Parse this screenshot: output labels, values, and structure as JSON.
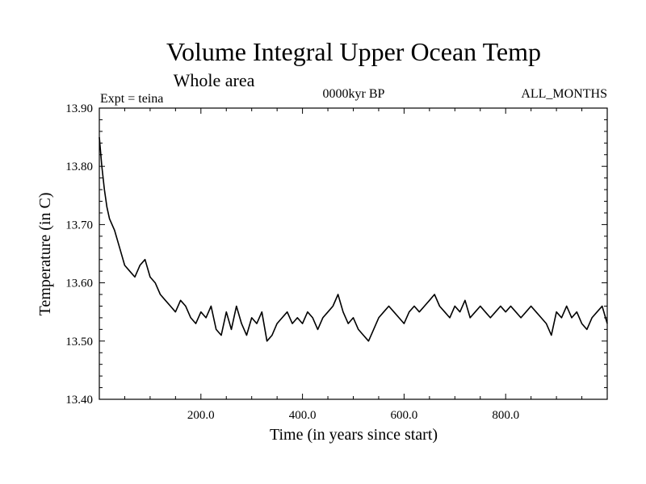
{
  "chart_data": {
    "type": "line",
    "title": "Volume Integral Upper Ocean Temp",
    "subtitle": "Whole area",
    "annotations": {
      "experiment": "Expt = teina",
      "period": "0000kyr BP",
      "months": "ALL_MONTHS"
    },
    "xlabel": "Time (in years since start)",
    "ylabel": "Temperature (in C)",
    "xlim": [
      0,
      1000
    ],
    "ylim": [
      13.4,
      13.9
    ],
    "xticks": [
      200,
      400,
      600,
      800
    ],
    "xtick_labels": [
      "200.0",
      "400.0",
      "600.0",
      "800.0"
    ],
    "yticks": [
      13.4,
      13.5,
      13.6,
      13.7,
      13.8,
      13.9
    ],
    "ytick_labels": [
      "13.40",
      "13.50",
      "13.60",
      "13.70",
      "13.80",
      "13.90"
    ],
    "grid": false,
    "series": [
      {
        "name": "teina",
        "x": [
          0,
          5,
          10,
          15,
          20,
          30,
          40,
          50,
          60,
          70,
          80,
          90,
          100,
          110,
          120,
          130,
          140,
          150,
          160,
          170,
          180,
          190,
          200,
          210,
          220,
          230,
          240,
          250,
          260,
          270,
          280,
          290,
          300,
          310,
          320,
          330,
          340,
          350,
          360,
          370,
          380,
          390,
          400,
          410,
          420,
          430,
          440,
          450,
          460,
          470,
          480,
          490,
          500,
          510,
          520,
          530,
          540,
          550,
          560,
          570,
          580,
          590,
          600,
          610,
          620,
          630,
          640,
          650,
          660,
          670,
          680,
          690,
          700,
          710,
          720,
          730,
          740,
          750,
          760,
          770,
          780,
          790,
          800,
          810,
          820,
          830,
          840,
          850,
          860,
          870,
          880,
          890,
          900,
          910,
          920,
          930,
          940,
          950,
          960,
          970,
          980,
          990,
          1000
        ],
        "values": [
          13.85,
          13.8,
          13.76,
          13.73,
          13.71,
          13.69,
          13.66,
          13.63,
          13.62,
          13.61,
          13.63,
          13.64,
          13.61,
          13.6,
          13.58,
          13.57,
          13.56,
          13.55,
          13.57,
          13.56,
          13.54,
          13.53,
          13.55,
          13.54,
          13.56,
          13.52,
          13.51,
          13.55,
          13.52,
          13.56,
          13.53,
          13.51,
          13.54,
          13.53,
          13.55,
          13.5,
          13.51,
          13.53,
          13.54,
          13.55,
          13.53,
          13.54,
          13.53,
          13.55,
          13.54,
          13.52,
          13.54,
          13.55,
          13.56,
          13.58,
          13.55,
          13.53,
          13.54,
          13.52,
          13.51,
          13.5,
          13.52,
          13.54,
          13.55,
          13.56,
          13.55,
          13.54,
          13.53,
          13.55,
          13.56,
          13.55,
          13.56,
          13.57,
          13.58,
          13.56,
          13.55,
          13.54,
          13.56,
          13.55,
          13.57,
          13.54,
          13.55,
          13.56,
          13.55,
          13.54,
          13.55,
          13.56,
          13.55,
          13.56,
          13.55,
          13.54,
          13.55,
          13.56,
          13.55,
          13.54,
          13.53,
          13.51,
          13.55,
          13.54,
          13.56,
          13.54,
          13.55,
          13.53,
          13.52,
          13.54,
          13.55,
          13.56,
          13.53
        ]
      }
    ]
  }
}
